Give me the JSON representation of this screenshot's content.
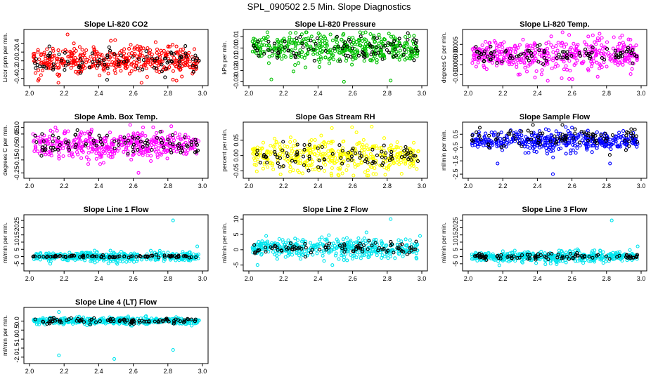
{
  "figure_title": "SPL_090502  2.5 Min. Slope Diagnostics",
  "colors": {
    "red": "#ff0000",
    "green": "#00c000",
    "magenta": "#ff00ff",
    "yellow": "#ffff00",
    "blue": "#0000ff",
    "cyan": "#00e5ee",
    "overlay": "#000000"
  },
  "chart_data": [
    {
      "type": "scatter",
      "title": "Slope Li-820 CO2",
      "ylabel": "Licor ppm per min.",
      "xlim": [
        2.0,
        3.0
      ],
      "ylim": [
        -0.5,
        0.65
      ],
      "xticks": [
        "2.0",
        "2.2",
        "2.4",
        "2.6",
        "2.8",
        "3.0"
      ],
      "yticks": [
        "-0.4",
        "-0.2",
        "0.0",
        "0.2",
        "0.4"
      ],
      "color": "red",
      "series": [
        {
          "name": "all",
          "center": 0.0,
          "spread": 0.15,
          "count": 420
        },
        {
          "name": "overlay",
          "center": 0.0,
          "spread": 0.13,
          "count": 90
        }
      ],
      "outliers": [
        [
          2.22,
          0.6
        ],
        [
          2.05,
          -0.45
        ],
        [
          2.85,
          -0.45
        ]
      ]
    },
    {
      "type": "scatter",
      "title": "Slope Li-820 Pressure",
      "ylabel": "kPa per min.",
      "xlim": [
        2.0,
        3.0
      ],
      "ylim": [
        -0.031,
        0.014
      ],
      "xticks": [
        "2.0",
        "2.2",
        "2.4",
        "2.6",
        "2.8",
        "3.0"
      ],
      "yticks": [
        "-0.03",
        "-0.02",
        "-0.01",
        "0.00",
        "0.01"
      ],
      "color": "green",
      "series": [
        {
          "name": "all",
          "center": 0.0,
          "spread": 0.006,
          "count": 420
        },
        {
          "name": "overlay",
          "center": 0.0,
          "spread": 0.005,
          "count": 90
        }
      ],
      "outliers": [
        [
          2.55,
          -0.03
        ],
        [
          2.13,
          -0.028
        ],
        [
          2.82,
          -0.029
        ]
      ]
    },
    {
      "type": "scatter",
      "title": "Slope Li-820 Temp.",
      "ylabel": "degrees C per min.",
      "xlim": [
        2.0,
        3.0
      ],
      "ylim": [
        -0.014,
        0.011
      ],
      "xticks": [
        "2.0",
        "2.2",
        "2.4",
        "2.6",
        "2.8",
        "3.0"
      ],
      "yticks": [
        "-0.010",
        "-0.005",
        "0.000",
        "0.005"
      ],
      "color": "magenta",
      "series": [
        {
          "name": "all",
          "center": 0.0,
          "spread": 0.0035,
          "count": 420
        },
        {
          "name": "overlay",
          "center": 0.0,
          "spread": 0.002,
          "count": 90
        }
      ],
      "outliers": [
        [
          2.46,
          -0.013
        ],
        [
          2.48,
          0.009
        ]
      ]
    },
    {
      "type": "scatter",
      "title": "Slope Amb. Box Temp.",
      "ylabel": "degrees C per min.",
      "xlim": [
        2.0,
        3.0
      ],
      "ylim": [
        -0.27,
        0.12
      ],
      "xticks": [
        "2.0",
        "2.2",
        "2.4",
        "2.6",
        "2.8",
        "3.0"
      ],
      "yticks": [
        "-0.25",
        "-0.15",
        "-0.05",
        "0.05",
        "0.10"
      ],
      "color": "magenta",
      "series": [
        {
          "name": "all",
          "center": -0.03,
          "spread": 0.05,
          "count": 420
        },
        {
          "name": "overlay",
          "center": -0.03,
          "spread": 0.04,
          "count": 90
        }
      ],
      "outliers": [
        [
          2.63,
          -0.25
        ],
        [
          2.15,
          0.1
        ],
        [
          2.82,
          0.11
        ]
      ]
    },
    {
      "type": "scatter",
      "title": "Slope Gas Stream RH",
      "ylabel": "percent per min.",
      "xlim": [
        2.0,
        3.0
      ],
      "ylim": [
        -0.065,
        0.1
      ],
      "xticks": [
        "2.0",
        "2.2",
        "2.4",
        "2.6",
        "2.8",
        "3.0"
      ],
      "yticks": [
        "-0.05",
        "0.00",
        "0.05"
      ],
      "color": "yellow",
      "series": [
        {
          "name": "all",
          "center": 0.0,
          "spread": 0.025,
          "count": 420
        },
        {
          "name": "overlay",
          "center": 0.0,
          "spread": 0.02,
          "count": 90
        }
      ],
      "outliers": [
        [
          2.48,
          0.09
        ],
        [
          2.72,
          -0.06
        ]
      ]
    },
    {
      "type": "scatter",
      "title": "Slope Sample Flow",
      "ylabel": "ml/min per min.",
      "xlim": [
        2.0,
        3.0
      ],
      "ylim": [
        -2.6,
        1.2
      ],
      "xticks": [
        "2.0",
        "2.2",
        "2.4",
        "2.6",
        "2.8",
        "3.0"
      ],
      "yticks": [
        "-2.5",
        "-1.5",
        "-0.5",
        "0.5"
      ],
      "color": "blue",
      "series": [
        {
          "name": "all",
          "center": 0.0,
          "spread": 0.3,
          "count": 420
        },
        {
          "name": "overlay",
          "center": 0.1,
          "spread": 0.45,
          "count": 90
        }
      ],
      "outliers": [
        [
          2.17,
          -1.7
        ],
        [
          2.49,
          -2.5
        ],
        [
          2.82,
          -1.7
        ],
        [
          2.6,
          1.0
        ]
      ]
    },
    {
      "type": "scatter",
      "title": "Slope Line 1 Flow",
      "ylabel": "ml/min per min.",
      "xlim": [
        2.0,
        3.0
      ],
      "ylim": [
        -8,
        27
      ],
      "xticks": [
        "2.0",
        "2.2",
        "2.4",
        "2.6",
        "2.8",
        "3.0"
      ],
      "yticks": [
        "-5",
        "0",
        "5",
        "10",
        "15",
        "20",
        "25"
      ],
      "color": "cyan",
      "series": [
        {
          "name": "all",
          "center": 0.0,
          "spread": 1.5,
          "count": 420
        },
        {
          "name": "overlay",
          "center": 0.0,
          "spread": 0.4,
          "count": 90
        }
      ],
      "outliers": [
        [
          2.83,
          25
        ],
        [
          2.97,
          7
        ],
        [
          2.12,
          -5
        ]
      ]
    },
    {
      "type": "scatter",
      "title": "Slope Line 2 Flow",
      "ylabel": "ml/min per min.",
      "xlim": [
        2.0,
        3.0
      ],
      "ylim": [
        -6,
        10.5
      ],
      "xticks": [
        "2.0",
        "2.2",
        "2.4",
        "2.6",
        "2.8",
        "3.0"
      ],
      "yticks": [
        "-5",
        "0",
        "5",
        "10"
      ],
      "color": "cyan",
      "series": [
        {
          "name": "all",
          "center": 0.5,
          "spread": 1.4,
          "count": 420
        },
        {
          "name": "overlay",
          "center": 0.5,
          "spread": 0.9,
          "count": 90
        }
      ],
      "outliers": [
        [
          2.82,
          10
        ],
        [
          2.05,
          -5
        ],
        [
          2.1,
          4.5
        ],
        [
          2.99,
          4.5
        ]
      ]
    },
    {
      "type": "scatter",
      "title": "Slope Line 3 Flow",
      "ylabel": "ml/min per min.",
      "xlim": [
        2.0,
        3.0
      ],
      "ylim": [
        -8,
        27
      ],
      "xticks": [
        "2.0",
        "2.2",
        "2.4",
        "2.6",
        "2.8",
        "3.0"
      ],
      "yticks": [
        "-5",
        "0",
        "5",
        "10",
        "15",
        "20",
        "25"
      ],
      "color": "cyan",
      "series": [
        {
          "name": "all",
          "center": 0.0,
          "spread": 1.6,
          "count": 420
        },
        {
          "name": "overlay",
          "center": 0.0,
          "spread": 1.1,
          "count": 90
        }
      ],
      "outliers": [
        [
          2.83,
          25
        ],
        [
          2.98,
          7
        ],
        [
          2.18,
          -6
        ]
      ]
    },
    {
      "type": "scatter",
      "title": "Slope Line 4 (LT) Flow",
      "ylabel": "ml/min per min.",
      "xlim": [
        2.0,
        3.0
      ],
      "ylim": [
        -2.2,
        0.6
      ],
      "xticks": [
        "2.0",
        "2.2",
        "2.4",
        "2.6",
        "2.8",
        "3.0"
      ],
      "yticks": [
        "-2.0",
        "-1.5",
        "-1.0",
        "-0.5",
        "0.0"
      ],
      "color": "cyan",
      "series": [
        {
          "name": "all",
          "center": 0.0,
          "spread": 0.09,
          "count": 420
        },
        {
          "name": "overlay",
          "center": 0.0,
          "spread": 0.08,
          "count": 90
        }
      ],
      "outliers": [
        [
          2.17,
          -1.9
        ],
        [
          2.49,
          -2.1
        ],
        [
          2.83,
          -1.6
        ],
        [
          2.17,
          0.5
        ]
      ]
    }
  ]
}
